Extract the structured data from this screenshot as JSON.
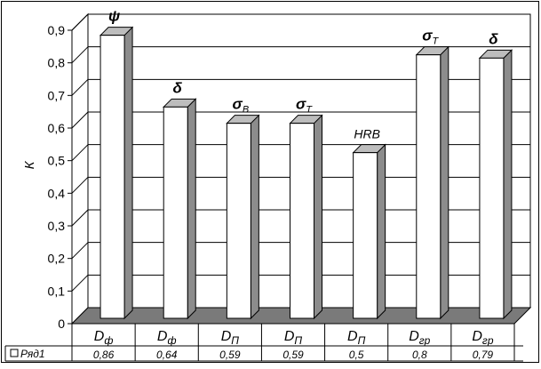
{
  "chart_data": {
    "type": "bar",
    "title": "",
    "xlabel": "",
    "ylabel": "К",
    "ylim": [
      0,
      0.9
    ],
    "yticks": [
      "0",
      "0,1",
      "0,2",
      "0,3",
      "0,4",
      "0,5",
      "0,6",
      "0,7",
      "0,8",
      "0,9"
    ],
    "grid": true,
    "legend": "table-row-left",
    "categories": [
      {
        "main": "D",
        "sub": "ф"
      },
      {
        "main": "D",
        "sub": "ф"
      },
      {
        "main": "D",
        "sub": "П"
      },
      {
        "main": "D",
        "sub": "П"
      },
      {
        "main": "D",
        "sub": "П"
      },
      {
        "main": "D",
        "sub": "гр"
      },
      {
        "main": "D",
        "sub": "гр"
      }
    ],
    "annotations": [
      {
        "main": "ψ",
        "sub": ""
      },
      {
        "main": "δ",
        "sub": ""
      },
      {
        "main": "σ",
        "sub": "В"
      },
      {
        "main": "σ",
        "sub": "Т"
      },
      {
        "main": "HRB",
        "sub": ""
      },
      {
        "main": "σ",
        "sub": "Т"
      },
      {
        "main": "δ",
        "sub": ""
      }
    ],
    "series": [
      {
        "name": "Ряд1",
        "values": [
          0.86,
          0.64,
          0.59,
          0.59,
          0.5,
          0.8,
          0.79
        ],
        "labels": [
          "0,86",
          "0,64",
          "0,59",
          "0,59",
          "0,5",
          "0,8",
          "0,79"
        ]
      }
    ],
    "colors": {
      "bar_front": "#ffffff",
      "bar_side": "#8c8c8c",
      "bar_top": "#bdbdbd",
      "floor": "#7a7a7a",
      "wall": "#ffffff",
      "grid": "#000000"
    }
  }
}
